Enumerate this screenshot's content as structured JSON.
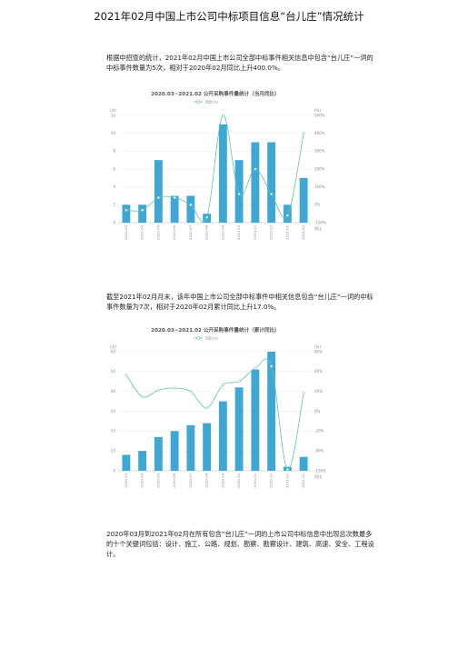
{
  "page": {
    "title": "2021年02月中国上市公司中标项目信息“台儿庄”情况统计",
    "para1": "根据中招查的统计，2021年02月中国上市公司全部中标事件相关信息中包含“台儿庄”一词的中标事件数量为5次，相对于2020年02月同比上升400.0%。",
    "para2": "截至2021年02月月末，该年中国上市公司全部中标事件中相关信息包含“台儿庄”一词的中标事件数量为7次，相对于2020年02月累计同比上升17.0%。",
    "para3": "2020年03月到2021年02月在所有包含“台儿庄”一词的上市公司中标信息中出现总次数最多的十个关键词包括：设计、施工、公路、规划、勘察、勘察设计、建筑、高速、安全、工程设计。"
  },
  "chart_data": [
    {
      "type": "bar",
      "title": "2020.03~2021.02 公开采购事件量统计（当月同比）",
      "legend": [
        "同比(%)"
      ],
      "left_unit": "(次)",
      "right_unit": "(%)",
      "right_axis_name": "同比",
      "categories": [
        "2020-03",
        "2020-04",
        "2020-05",
        "2020-06",
        "2020-07",
        "2020-08",
        "2020-09",
        "2020-10",
        "2020-11",
        "2020-12",
        "2021-01",
        "2021-02"
      ],
      "series": [
        {
          "values": [
            2,
            2,
            7,
            3,
            3,
            1,
            11,
            7,
            9,
            9,
            2,
            5
          ]
        },
        {
          "name": "同比(%)",
          "axis": "right",
          "values": [
            -30,
            -30,
            40,
            40,
            0,
            -70,
            500,
            60,
            200,
            60,
            -60,
            400
          ]
        }
      ],
      "ylim": [
        0,
        12
      ],
      "yticks": [
        "0",
        "2",
        "4",
        "6",
        "8",
        "10",
        "12"
      ],
      "y2lim": [
        -100,
        500
      ],
      "y2ticks": [
        "-100%",
        "0%",
        "100%",
        "200%",
        "300%",
        "400%",
        "500%"
      ],
      "colors": {
        "bar": "#3fa7d6",
        "line": "#5fc1ad",
        "point": "#ffffff"
      }
    },
    {
      "type": "bar",
      "title": "2020.03~2021.02 公开采购事件量统计（累计同比）",
      "legend": [
        "同比(%)"
      ],
      "left_unit": "(次)",
      "right_unit": "(%)",
      "right_axis_name": "同比",
      "categories": [
        "2020-03",
        "2020-04",
        "2020-05",
        "2020-06",
        "2020-07",
        "2020-08",
        "2020-09",
        "2020-10",
        "2020-11",
        "2020-12",
        "2021-01",
        "2021-02"
      ],
      "series": [
        {
          "values": [
            8,
            10,
            17,
            20,
            23,
            24,
            35,
            42,
            51,
            60,
            2,
            7
          ]
        },
        {
          "name": "同比(%)",
          "axis": "right",
          "values": [
            45,
            12,
            22,
            25,
            20,
            -5,
            30,
            35,
            55,
            58,
            -98,
            17
          ]
        }
      ],
      "ylim": [
        0,
        60
      ],
      "yticks": [
        "0",
        "10",
        "20",
        "30",
        "40",
        "50",
        "60"
      ],
      "y2lim": [
        -100,
        80
      ],
      "y2ticks": [
        "-100%",
        "-60%",
        "-20%",
        "0%",
        "20%",
        "40%",
        "80%"
      ],
      "colors": {
        "bar": "#3fa7d6",
        "line": "#5fc1ad",
        "point": "#ffffff"
      }
    }
  ]
}
